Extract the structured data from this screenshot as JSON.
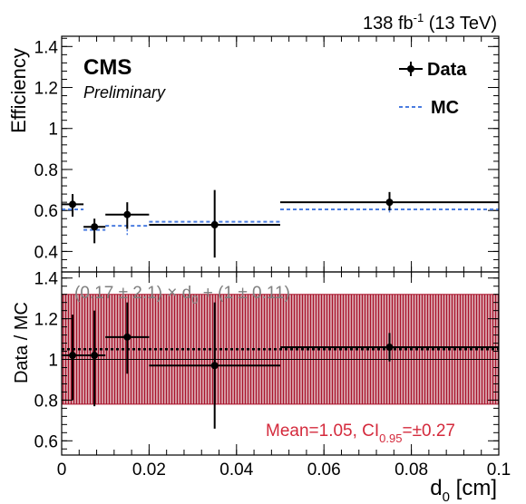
{
  "chart_data": [
    {
      "type": "scatter",
      "header": {
        "lumi_value": "138 fb",
        "lumi_exp": "-1",
        "energy": " (13 TeV)"
      },
      "cms_label": "CMS",
      "preliminary_label": "Preliminary",
      "ylabel": "Efficiency",
      "ylim": [
        0.3,
        1.45
      ],
      "yticks": [
        "0.4",
        "0.6",
        "0.8",
        "1",
        "1.2",
        "1.4"
      ],
      "xlim": [
        0,
        0.1
      ],
      "legend": {
        "placement": "top-right",
        "data_label": "Data",
        "mc_label": "MC"
      },
      "series": [
        {
          "name": "Data",
          "points": [
            {
              "x": 0.0025,
              "xerr": 0.0025,
              "y": 0.63,
              "ylow": 0.57,
              "yhigh": 0.68
            },
            {
              "x": 0.0075,
              "xerr": 0.0025,
              "y": 0.52,
              "ylow": 0.44,
              "yhigh": 0.56
            },
            {
              "x": 0.015,
              "xerr": 0.005,
              "y": 0.58,
              "ylow": 0.51,
              "yhigh": 0.64
            },
            {
              "x": 0.035,
              "xerr": 0.015,
              "y": 0.53,
              "ylow": 0.37,
              "yhigh": 0.7
            },
            {
              "x": 0.075,
              "xerr": 0.025,
              "y": 0.64,
              "ylow": 0.6,
              "yhigh": 0.69
            }
          ]
        },
        {
          "name": "MC",
          "color": "#4a7ce0",
          "bins": [
            {
              "xlo": 0.0,
              "xhi": 0.005,
              "y": 0.605,
              "ylow": 0.57,
              "yhigh": 0.63
            },
            {
              "xlo": 0.005,
              "xhi": 0.01,
              "y": 0.505,
              "ylow": 0.47,
              "yhigh": 0.53
            },
            {
              "xlo": 0.01,
              "xhi": 0.02,
              "y": 0.525,
              "ylow": 0.48,
              "yhigh": 0.55
            },
            {
              "xlo": 0.02,
              "xhi": 0.05,
              "y": 0.545,
              "ylow": 0.54,
              "yhigh": 0.55
            },
            {
              "xlo": 0.05,
              "xhi": 0.1,
              "y": 0.605,
              "ylow": 0.59,
              "yhigh": 0.62
            }
          ]
        }
      ]
    },
    {
      "type": "scatter",
      "ylabel": "Data / MC",
      "ylim": [
        0.53,
        1.43
      ],
      "yticks": [
        "0.6",
        "0.8",
        "1",
        "1.2",
        "1.4"
      ],
      "xlim": [
        0,
        0.1
      ],
      "xticks": [
        "0",
        "0.02",
        "0.04",
        "0.06",
        "0.08",
        "0.1"
      ],
      "xlabel_main": "d",
      "xlabel_sub": "0",
      "xlabel_unit": " [cm]",
      "fit_text": {
        "part1": "(0.17 ± 2.1) × d",
        "sub": "0",
        "part2": " + (1 ± 0.11)"
      },
      "mean_text": {
        "part1": "Mean=1.05, CI",
        "sub": "0.95",
        "part2": "=±0.27"
      },
      "band": {
        "low": 0.78,
        "high": 1.32,
        "color": "#a8122a"
      },
      "fit_line_y": 1.05,
      "points": [
        {
          "x": 0.0025,
          "xerr": 0.0025,
          "y": 1.02,
          "ylow": 0.8,
          "yhigh": 1.22
        },
        {
          "x": 0.0075,
          "xerr": 0.0025,
          "y": 1.02,
          "ylow": 0.77,
          "yhigh": 1.24
        },
        {
          "x": 0.015,
          "xerr": 0.005,
          "y": 1.11,
          "ylow": 0.93,
          "yhigh": 1.28
        },
        {
          "x": 0.035,
          "xerr": 0.015,
          "y": 0.97,
          "ylow": 0.66,
          "yhigh": 1.28
        },
        {
          "x": 0.075,
          "xerr": 0.025,
          "y": 1.06,
          "ylow": 0.99,
          "yhigh": 1.13
        }
      ]
    }
  ]
}
